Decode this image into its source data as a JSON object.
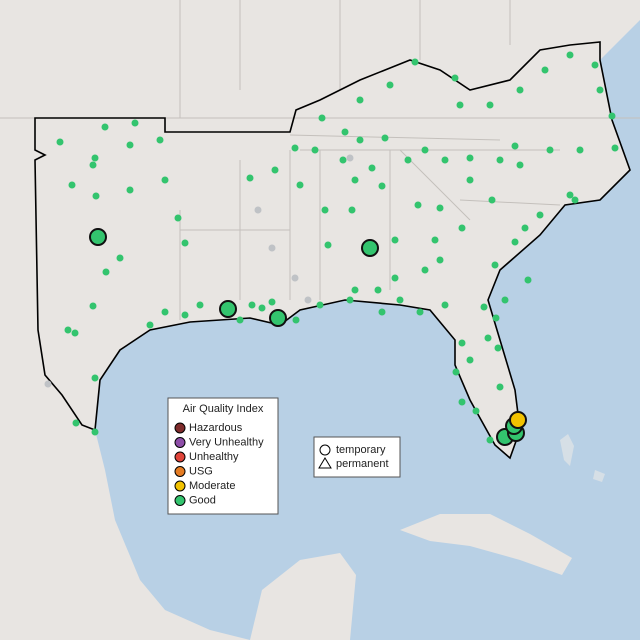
{
  "legend": {
    "title": "Air Quality Index",
    "items": [
      {
        "label": "Hazardous",
        "color": "#7e2b2b"
      },
      {
        "label": "Very Unhealthy",
        "color": "#8e4ea8"
      },
      {
        "label": "Unhealthy",
        "color": "#e0443a"
      },
      {
        "label": "USG",
        "color": "#e57c23"
      },
      {
        "label": "Moderate",
        "color": "#f2c200"
      },
      {
        "label": "Good",
        "color": "#33c46e"
      }
    ]
  },
  "shape_legend": {
    "items": [
      "temporary",
      "permanent"
    ]
  }
}
